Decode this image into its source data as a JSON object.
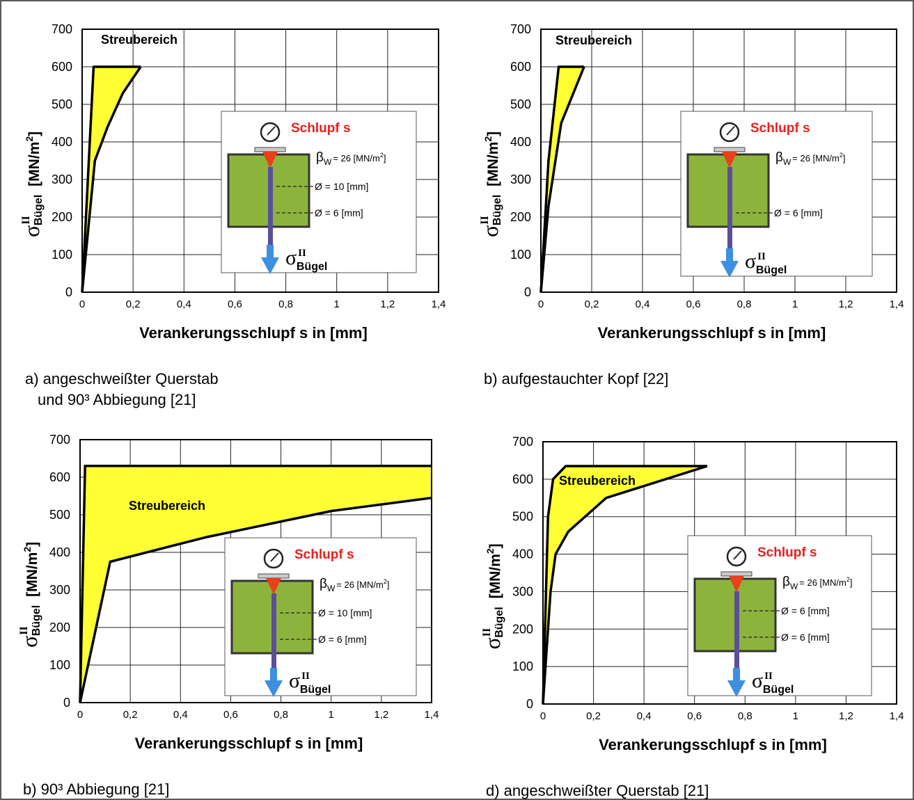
{
  "chart_data": [
    {
      "type": "area",
      "xlabel": "Verankerungsschlupf s in [mm]",
      "ylabel": [
        "σ",
        "II",
        "Bügel",
        "[MN/m",
        "2",
        "]"
      ],
      "caption": [
        "a) angeschweißter Querstab",
        "und 90³ Abbiegung [21]"
      ],
      "scatter_label": "Streubereich",
      "series": [
        {
          "color": "#000000",
          "x": [
            0,
            0.045,
            0.23
          ],
          "values": [
            0,
            600,
            600
          ]
        },
        {
          "color": "#000000",
          "x": [
            0,
            0.05,
            0.1,
            0.16,
            0.23
          ],
          "values": [
            0,
            350,
            440,
            530,
            600
          ]
        }
      ],
      "fill": "#ffff33",
      "xlim": [
        0,
        1.4
      ],
      "ylim": [
        0,
        700
      ],
      "xticks": [
        0,
        {
          "value": 0.2,
          "label": "0,2"
        },
        {
          "value": 0.4,
          "label": "0,4"
        },
        {
          "value": 0.6,
          "label": "0,6"
        },
        {
          "value": 0.8,
          "label": "0,8"
        },
        1,
        {
          "value": 1.2,
          "label": "1,2"
        },
        {
          "value": 1.4,
          "label": "1,4"
        }
      ],
      "yticks": [
        0,
        100,
        200,
        300,
        400,
        500,
        600,
        700
      ],
      "grid": true,
      "inset": {
        "slip_label": "Schlupf s",
        "beta": "β",
        "beta_sub": "W",
        "beta_text": "= 26 [MN/m",
        "beta_sup": "2",
        "beta_end": "]",
        "diameters": [
          "Ø = 10 [mm]",
          "Ø = 6 [mm]"
        ],
        "sigma": "σ",
        "sigma_sup": "II",
        "sigma_sub": "Bügel"
      }
    },
    {
      "type": "area",
      "xlabel": "Verankerungsschlupf s in [mm]",
      "ylabel": [
        "σ",
        "II",
        "Bügel",
        "[MN/m",
        "2",
        "]"
      ],
      "caption": [
        "b) aufgestauchter Kopf [22]"
      ],
      "scatter_label": "Streubereich",
      "series": [
        {
          "color": "#000000",
          "x": [
            0,
            0.03,
            0.07,
            0.17
          ],
          "values": [
            0,
            350,
            600,
            600
          ]
        },
        {
          "color": "#000000",
          "x": [
            0,
            0.03,
            0.08,
            0.17
          ],
          "values": [
            0,
            230,
            450,
            600
          ]
        }
      ],
      "fill": "#ffff33",
      "xlim": [
        0,
        1.4
      ],
      "ylim": [
        0,
        700
      ],
      "xticks": [
        0,
        {
          "value": 0.2,
          "label": "0,2"
        },
        {
          "value": 0.4,
          "label": "0,4"
        },
        {
          "value": 0.6,
          "label": "0,6"
        },
        {
          "value": 0.8,
          "label": "0,8"
        },
        1,
        {
          "value": 1.2,
          "label": "1,2"
        },
        {
          "value": 1.4,
          "label": "1,4"
        }
      ],
      "yticks": [
        0,
        100,
        200,
        300,
        400,
        500,
        600,
        700
      ],
      "grid": true,
      "inset": {
        "slip_label": "Schlupf s",
        "beta": "β",
        "beta_sub": "W",
        "beta_text": "= 26 [MN/m",
        "beta_sup": "2",
        "beta_end": "]",
        "diameters": [
          "Ø = 6 [mm]"
        ],
        "sigma": "σ",
        "sigma_sup": "II",
        "sigma_sub": "Bügel"
      }
    },
    {
      "type": "area",
      "xlabel": "Verankerungsschlupf s in [mm]",
      "ylabel": [
        "σ",
        "II",
        "Bügel",
        "[MN/m",
        "2",
        "]"
      ],
      "caption": [
        "b) 90³ Abbiegung [21]"
      ],
      "scatter_label": "Streubereich",
      "series": [
        {
          "color": "#000000",
          "x": [
            0,
            0.02,
            1.4
          ],
          "values": [
            0,
            630,
            630
          ]
        },
        {
          "color": "#000000",
          "x": [
            0,
            0.12,
            0.5,
            1,
            1.4
          ],
          "values": [
            0,
            375,
            440,
            510,
            545
          ]
        }
      ],
      "fill": "#ffff33",
      "xlim": [
        0,
        1.4
      ],
      "ylim": [
        0,
        700
      ],
      "xticks": [
        0,
        {
          "value": 0.2,
          "label": "0,2"
        },
        {
          "value": 0.4,
          "label": "0,4"
        },
        {
          "value": 0.6,
          "label": "0,6"
        },
        {
          "value": 0.8,
          "label": "0,8"
        },
        1,
        {
          "value": 1.2,
          "label": "1,2"
        },
        {
          "value": 1.4,
          "label": "1,4"
        }
      ],
      "yticks": [
        0,
        100,
        200,
        300,
        400,
        500,
        600,
        700
      ],
      "grid": true,
      "inset": {
        "slip_label": "Schlupf s",
        "beta": "β",
        "beta_sub": "W",
        "beta_text": "= 26 [MN/m",
        "beta_sup": "2",
        "beta_end": "]",
        "diameters": [
          "Ø = 10 [mm]",
          "Ø = 6 [mm]"
        ],
        "sigma": "σ",
        "sigma_sup": "II",
        "sigma_sub": "Bügel"
      }
    },
    {
      "type": "area",
      "xlabel": "Verankerungsschlupf s in [mm]",
      "ylabel": [
        "σ",
        "II",
        "Bügel",
        "[MN/m",
        "2",
        "]"
      ],
      "caption": [
        "d) angeschweißter Querstab [21]"
      ],
      "scatter_label": "Streubereich",
      "series": [
        {
          "color": "#000000",
          "x": [
            0,
            0.02,
            0.04,
            0.09,
            0.65
          ],
          "values": [
            0,
            500,
            600,
            635,
            635
          ]
        },
        {
          "color": "#000000",
          "x": [
            0,
            0.03,
            0.05,
            0.1,
            0.25,
            0.65
          ],
          "values": [
            0,
            300,
            400,
            460,
            550,
            635
          ]
        }
      ],
      "fill": "#ffff33",
      "xlim": [
        0,
        1.4
      ],
      "ylim": [
        0,
        700
      ],
      "xticks": [
        0,
        {
          "value": 0.2,
          "label": "0,2"
        },
        {
          "value": 0.4,
          "label": "0,4"
        },
        {
          "value": 0.6,
          "label": "0,6"
        },
        {
          "value": 0.8,
          "label": "0,8"
        },
        1,
        {
          "value": 1.2,
          "label": "1,2"
        },
        {
          "value": 1.4,
          "label": "1,4"
        }
      ],
      "yticks": [
        0,
        100,
        200,
        300,
        400,
        500,
        600,
        700
      ],
      "grid": true,
      "inset": {
        "slip_label": "Schlupf s",
        "beta": "β",
        "beta_sub": "W",
        "beta_text": "= 26 [MN/m",
        "beta_sup": "2",
        "beta_end": "]",
        "diameters": [
          "Ø = 6 [mm]",
          "Ø = 6 [mm]"
        ],
        "sigma": "σ",
        "sigma_sup": "II",
        "sigma_sub": "Bügel"
      }
    }
  ]
}
